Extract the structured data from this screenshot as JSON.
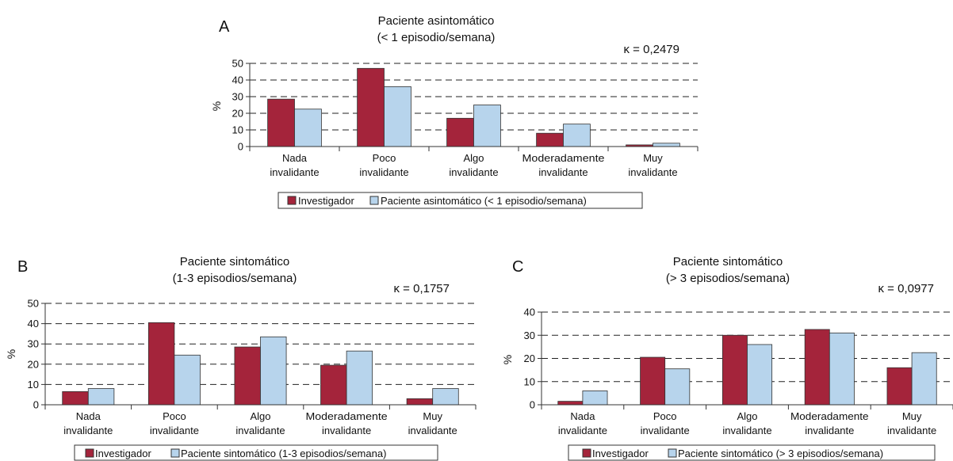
{
  "colors": {
    "investigator": "#a4243b",
    "patient": "#b7d4ec",
    "axis": "#333333"
  },
  "chart_data": [
    {
      "panel_letter": "A",
      "type": "bar",
      "title": "Paciente asintomático",
      "subtitle": "(< 1 episodio/semana)",
      "kappa": "κ = 0,2479",
      "ylabel": "%",
      "ylim": [
        0,
        50
      ],
      "yticks": [
        "0",
        "10",
        "20",
        "30",
        "40",
        "50"
      ],
      "grid": "dashed",
      "legend_placement": "bottom",
      "categories": [
        [
          "Nada",
          "invalidante"
        ],
        [
          "Poco",
          "invalidante"
        ],
        [
          "Algo",
          "invalidante"
        ],
        [
          "Moderadamente",
          "invalidante"
        ],
        [
          "Muy",
          "invalidante"
        ]
      ],
      "series": [
        {
          "name": "Investigador",
          "values": [
            28.5,
            47,
            17,
            8,
            1
          ]
        },
        {
          "name": "Paciente asintomático (< 1 episodio/semana)",
          "values": [
            22.5,
            36,
            25,
            13.5,
            2
          ]
        }
      ]
    },
    {
      "panel_letter": "B",
      "type": "bar",
      "title": "Paciente sintomático",
      "subtitle": "(1-3 episodios/semana)",
      "kappa": "κ = 0,1757",
      "ylabel": "%",
      "ylim": [
        0,
        50
      ],
      "yticks": [
        "0",
        "10",
        "20",
        "30",
        "40",
        "50"
      ],
      "grid": "dashed",
      "legend_placement": "bottom",
      "categories": [
        [
          "Nada",
          "invalidante"
        ],
        [
          "Poco",
          "invalidante"
        ],
        [
          "Algo",
          "invalidante"
        ],
        [
          "Moderadamente",
          "invalidante"
        ],
        [
          "Muy",
          "invalidante"
        ]
      ],
      "series": [
        {
          "name": "Investigador",
          "values": [
            6.5,
            40.5,
            28.5,
            19.5,
            3
          ]
        },
        {
          "name": "Paciente sintomático (1-3 episodios/semana)",
          "values": [
            8,
            24.5,
            33.5,
            26.5,
            8
          ]
        }
      ]
    },
    {
      "panel_letter": "C",
      "type": "bar",
      "title": "Paciente sintomático",
      "subtitle": "(> 3 episodios/semana)",
      "kappa": "κ = 0,0977",
      "ylabel": "%",
      "ylim": [
        0,
        40
      ],
      "yticks": [
        "0",
        "10",
        "20",
        "30",
        "40"
      ],
      "grid": "dashed",
      "legend_placement": "bottom",
      "categories": [
        [
          "Nada",
          "invalidante"
        ],
        [
          "Poco",
          "invalidante"
        ],
        [
          "Algo",
          "invalidante"
        ],
        [
          "Moderadamente",
          "invalidante"
        ],
        [
          "Muy",
          "invalidante"
        ]
      ],
      "series": [
        {
          "name": "Investigador",
          "values": [
            1.5,
            20.5,
            30,
            32.5,
            16
          ]
        },
        {
          "name": "Paciente sintomático (> 3 episodios/semana)",
          "values": [
            6,
            15.5,
            26,
            31,
            22.5
          ]
        }
      ]
    }
  ]
}
